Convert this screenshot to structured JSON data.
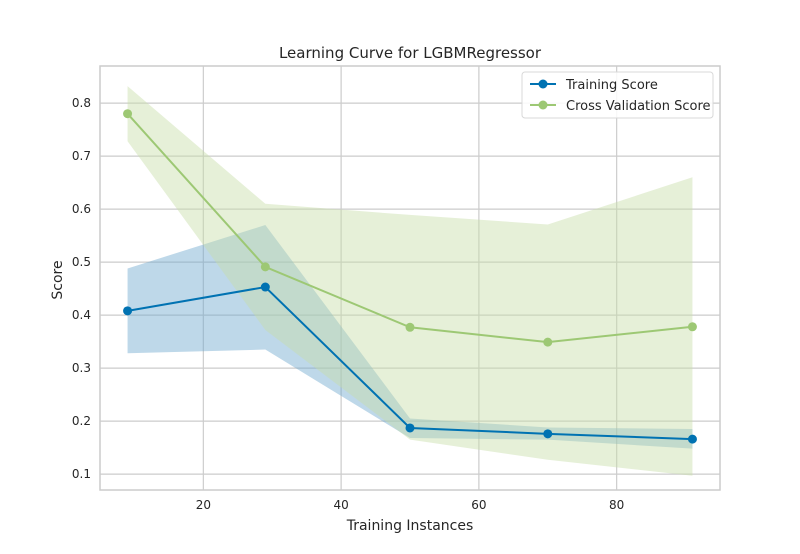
{
  "chart_data": {
    "type": "line",
    "title": "Learning Curve for LGBMRegressor",
    "xlabel": "Training Instances",
    "ylabel": "Score",
    "xlim": [
      5,
      95
    ],
    "ylim": [
      0.07,
      0.87
    ],
    "xticks": [
      20,
      40,
      60,
      80
    ],
    "yticks": [
      0.1,
      0.2,
      0.3,
      0.4,
      0.5,
      0.6,
      0.7,
      0.8
    ],
    "x": [
      9,
      29,
      50,
      70,
      91
    ],
    "grid": true,
    "legend_position": "top-right",
    "series": [
      {
        "name": "Training Score",
        "color": "#0072b2",
        "values": [
          0.408,
          0.453,
          0.187,
          0.176,
          0.166
        ],
        "lower": [
          0.328,
          0.335,
          0.168,
          0.165,
          0.148
        ],
        "upper": [
          0.488,
          0.57,
          0.205,
          0.188,
          0.185
        ]
      },
      {
        "name": "Cross Validation Score",
        "color": "#9dc874",
        "values": [
          0.78,
          0.491,
          0.377,
          0.349,
          0.378
        ],
        "lower": [
          0.728,
          0.372,
          0.165,
          0.127,
          0.097
        ],
        "upper": [
          0.832,
          0.61,
          0.589,
          0.571,
          0.66
        ]
      }
    ]
  }
}
